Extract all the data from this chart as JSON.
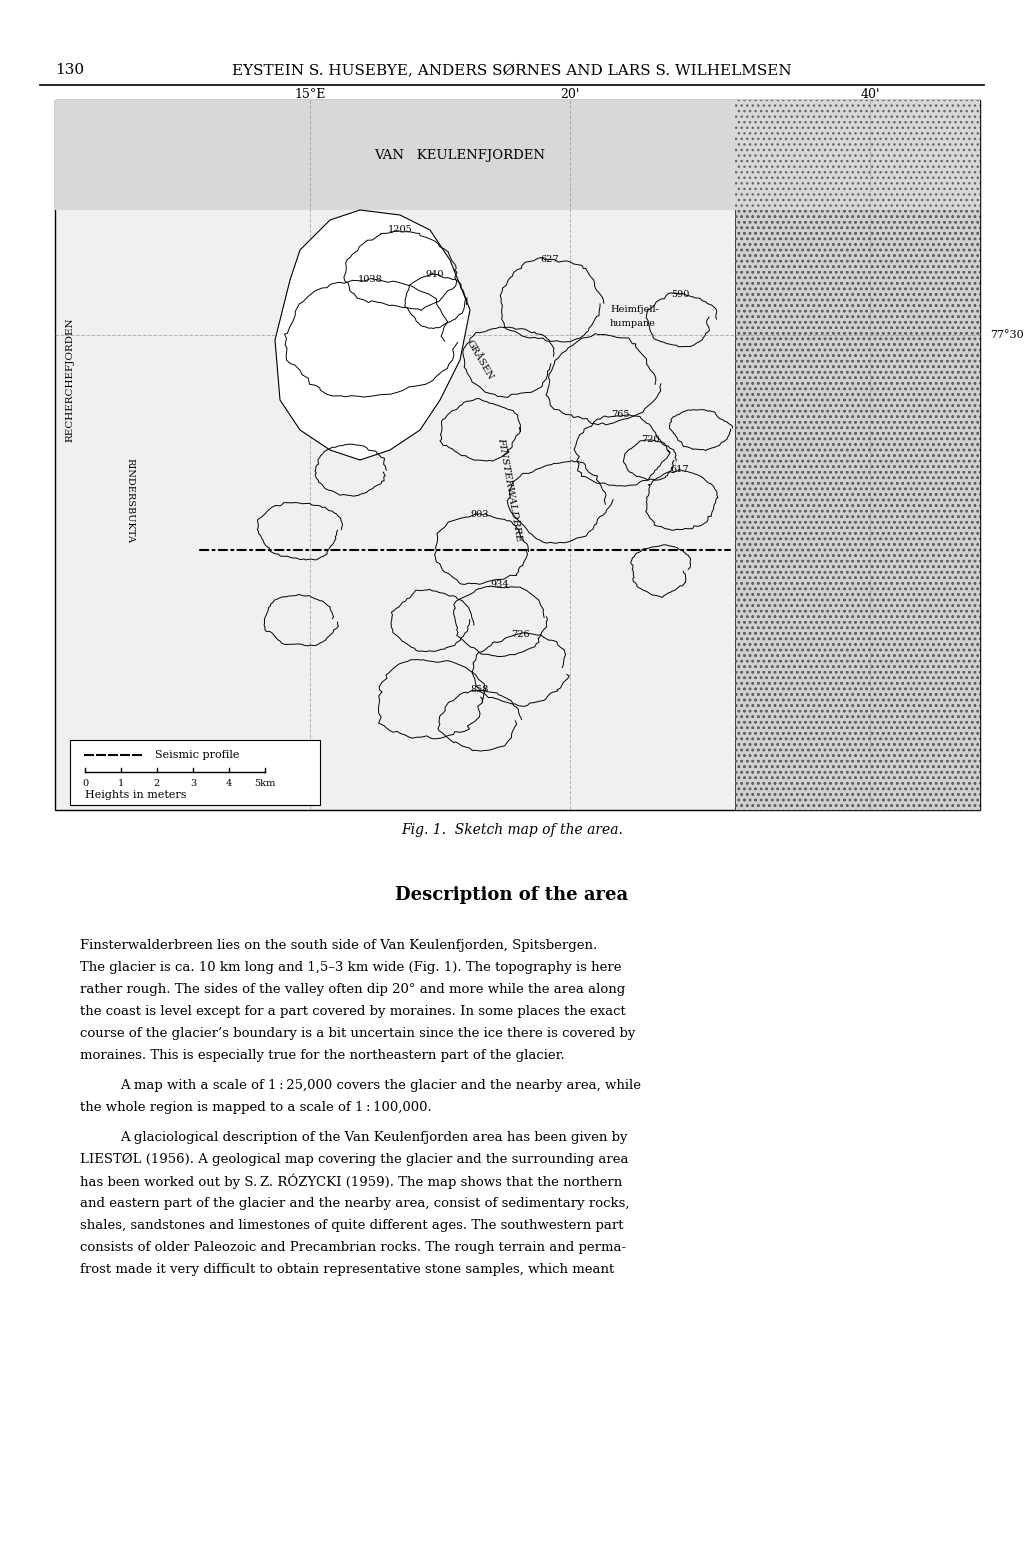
{
  "page_number": "130",
  "header_text": "EYSTEIN S. HUSEBYE, ANDERS SØRNES AND LARS S. WILHELMSEN",
  "fig_caption": "Fig. 1.  Sketch map of the area.",
  "section_title": "Description of the area",
  "body_text": [
    "Finsterwalderbreen lies on the south side of Van Keulenfjorden, Spitsbergen.",
    "The glacier is ca. 10 km long and 1,5–3 km wide (Fig. 1). The topography is here",
    "rather rough. The sides of the valley often dip 20° and more while the area along",
    "the coast is level except for a part covered by moraines. In some places the exact",
    "course of the glacier’s boundary is a bit uncertain since the ice there is covered by",
    "moraines. This is especially true for the northeastern part of the glacier.",
    "A map with a scale of 1 : 25,000 covers the glacier and the nearby area, while",
    "the whole region is mapped to a scale of 1 : 100,000.",
    "A glaciological description of the Van Keulenfjorden area has been given by",
    "LIESTØL (1956). A geological map covering the glacier and the surrounding area",
    "has been worked out by S. Z. RÓZYCKI (1959). The map shows that the northern",
    "and eastern part of the glacier and the nearby area, consist of sedimentary rocks,",
    "shales, sandstones and limestones of quite different ages. The southwestern part",
    "consists of older Paleozoic and Precambrian rocks. The rough terrain and perma-",
    "frost made it very difficult to obtain representative stone samples, which meant"
  ],
  "map_coord_labels": [
    "15°E",
    "20'",
    "40'"
  ],
  "map_lat_label": "77°30'",
  "map_fjord_label": "VAN   KEULENFJORDEN",
  "legend_seismic": "Seismic profile",
  "legend_scale": "0    1    2    3    4   5km",
  "legend_heights": "Heights in meters",
  "background_color": "#ffffff",
  "text_color": "#000000",
  "map_bg_color": "#e8e8e8",
  "map_sea_hatch_color": "#888888",
  "map_border_color": "#000000"
}
